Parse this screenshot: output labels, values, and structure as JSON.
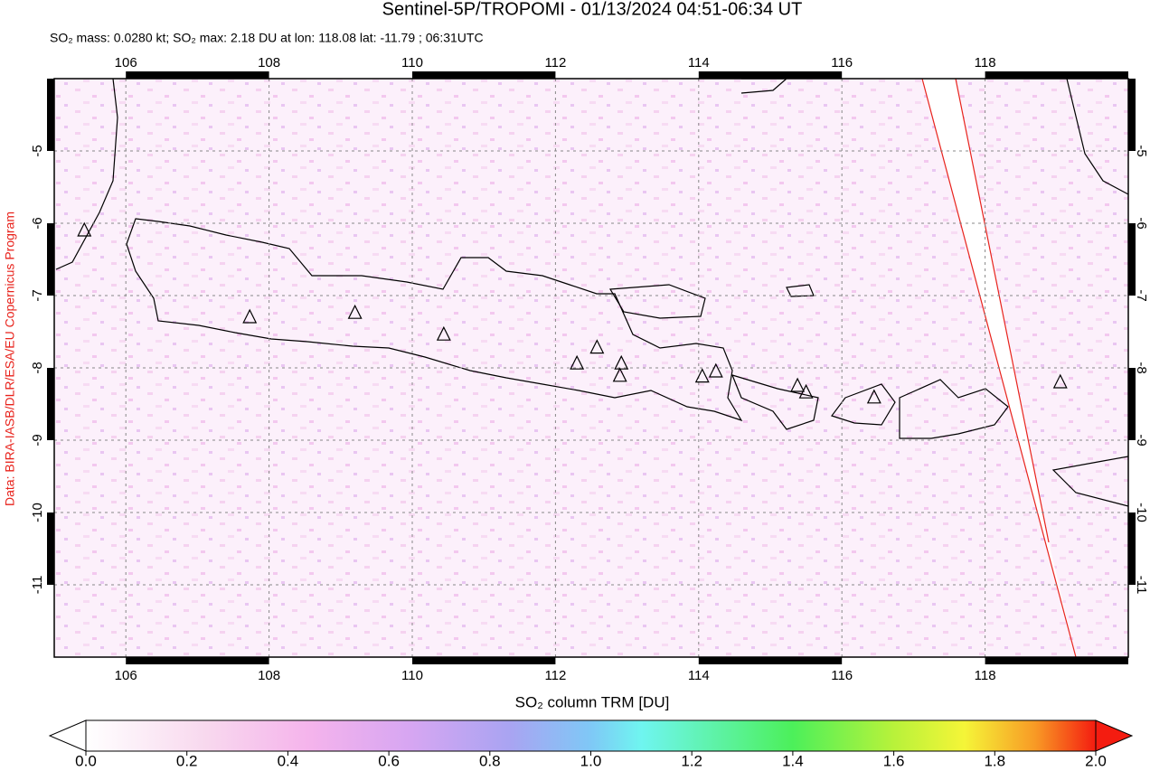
{
  "title": "Sentinel-5P/TROPOMI - 01/13/2024 04:51-06:34 UT",
  "subtitle": "SO₂ mass: 0.0280 kt; SO₂ max: 2.18 DU at lon: 118.08 lat: -11.79 ; 06:31UTC",
  "credit": "Data: BIRA-IASB/DLR/ESA/EU Copernicus Program",
  "map": {
    "xlim": [
      105,
      120
    ],
    "ylim": [
      -4,
      -12
    ],
    "xticks": [
      106,
      108,
      110,
      112,
      114,
      116,
      118
    ],
    "yticks": [
      -5,
      -6,
      -7,
      -8,
      -9,
      -10,
      -11
    ],
    "volcanoes": [
      [
        105.42,
        -6.1
      ],
      [
        107.73,
        -7.3
      ],
      [
        109.2,
        -7.24
      ],
      [
        110.44,
        -7.54
      ],
      [
        112.3,
        -7.94
      ],
      [
        112.58,
        -7.72
      ],
      [
        112.92,
        -7.94
      ],
      [
        112.9,
        -8.11
      ],
      [
        114.05,
        -8.12
      ],
      [
        114.24,
        -8.05
      ],
      [
        115.38,
        -8.25
      ],
      [
        115.5,
        -8.34
      ],
      [
        116.45,
        -8.41
      ],
      [
        119.05,
        -8.2
      ]
    ]
  },
  "colorbar": {
    "label": "SO₂ column TRM [DU]",
    "lim": [
      0,
      2
    ],
    "ticks": [
      {
        "value": 0,
        "label": "0.0"
      },
      {
        "value": 0.2,
        "label": "0.2"
      },
      {
        "value": 0.4,
        "label": "0.4"
      },
      {
        "value": 0.6,
        "label": "0.6"
      },
      {
        "value": 0.8,
        "label": "0.8"
      },
      {
        "value": 1,
        "label": "1.0"
      },
      {
        "value": 1.2,
        "label": "1.2"
      },
      {
        "value": 1.4,
        "label": "1.4"
      },
      {
        "value": 1.6,
        "label": "1.6"
      },
      {
        "value": 1.8,
        "label": "1.8"
      },
      {
        "value": 2,
        "label": "2.0"
      }
    ]
  }
}
